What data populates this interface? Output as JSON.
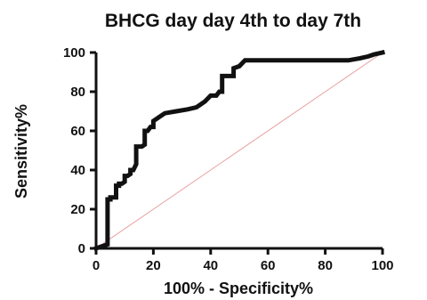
{
  "chart_data": {
    "type": "line",
    "title": "BHCG day day 4th to day 7th",
    "xlabel": "100% - Specificity%",
    "ylabel": "Sensitivity%",
    "xlim": [
      0,
      100
    ],
    "ylim": [
      0,
      100
    ],
    "xticks": [
      0,
      20,
      40,
      60,
      80,
      100
    ],
    "yticks": [
      0,
      20,
      40,
      60,
      80,
      100
    ],
    "grid": false,
    "legend": "none",
    "series": [
      {
        "role": "roc-curve",
        "color": "#111111",
        "x": [
          0,
          2,
          4,
          4,
          5,
          5,
          6,
          7,
          7,
          8,
          8,
          9,
          10,
          10,
          11,
          12,
          12,
          13,
          14,
          14,
          16,
          17,
          17,
          18,
          19,
          20,
          20,
          22,
          24,
          28,
          32,
          35,
          36,
          38,
          40,
          42,
          43,
          44,
          44,
          46,
          48,
          48,
          50,
          52,
          56,
          60,
          70,
          80,
          88,
          92,
          95,
          97,
          100
        ],
        "y": [
          0,
          1,
          2,
          25,
          25,
          26,
          26,
          26,
          32,
          32,
          33,
          33,
          34,
          37,
          37,
          38,
          40,
          40,
          43,
          52,
          52,
          53,
          60,
          60,
          62,
          62,
          65,
          67,
          69,
          70,
          71,
          72,
          73,
          75,
          78,
          78,
          80,
          80,
          88,
          88,
          88,
          92,
          93,
          96,
          96,
          96,
          96,
          96,
          96,
          97,
          98,
          99,
          100
        ]
      },
      {
        "role": "reference-line",
        "color": "#e8a0a0",
        "x": [
          0,
          100
        ],
        "y": [
          0,
          100
        ]
      }
    ]
  }
}
